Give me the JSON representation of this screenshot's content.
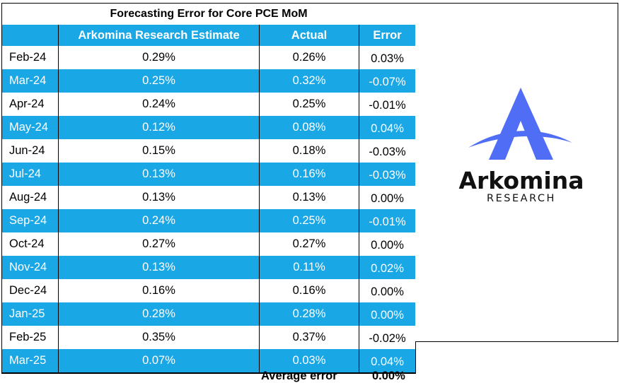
{
  "chart_data": {
    "type": "table",
    "title": "Forecasting Error for Core PCE MoM",
    "columns": [
      "",
      "Arkomina Research Estimate",
      "Actual",
      "Error"
    ],
    "rows": [
      {
        "month": "Feb-24",
        "estimate": "0.29%",
        "actual": "0.26%",
        "error": "0.03%"
      },
      {
        "month": "Mar-24",
        "estimate": "0.25%",
        "actual": "0.32%",
        "error": "-0.07%"
      },
      {
        "month": "Apr-24",
        "estimate": "0.24%",
        "actual": "0.25%",
        "error": "-0.01%"
      },
      {
        "month": "May-24",
        "estimate": "0.12%",
        "actual": "0.08%",
        "error": "0.04%"
      },
      {
        "month": "Jun-24",
        "estimate": "0.15%",
        "actual": "0.18%",
        "error": "-0.03%"
      },
      {
        "month": "Jul-24",
        "estimate": "0.13%",
        "actual": "0.16%",
        "error": "-0.03%"
      },
      {
        "month": "Aug-24",
        "estimate": "0.13%",
        "actual": "0.13%",
        "error": "0.00%"
      },
      {
        "month": "Sep-24",
        "estimate": "0.24%",
        "actual": "0.25%",
        "error": "-0.01%"
      },
      {
        "month": "Oct-24",
        "estimate": "0.27%",
        "actual": "0.27%",
        "error": "0.00%"
      },
      {
        "month": "Nov-24",
        "estimate": "0.13%",
        "actual": "0.11%",
        "error": "0.02%"
      },
      {
        "month": "Dec-24",
        "estimate": "0.16%",
        "actual": "0.16%",
        "error": "0.00%"
      },
      {
        "month": "Jan-25",
        "estimate": "0.28%",
        "actual": "0.28%",
        "error": "0.00%"
      },
      {
        "month": "Feb-25",
        "estimate": "0.35%",
        "actual": "0.37%",
        "error": "-0.02%"
      },
      {
        "month": "Mar-25",
        "estimate": "0.07%",
        "actual": "0.03%",
        "error": "0.04%"
      }
    ],
    "summary": {
      "label": "Average error",
      "value": "0.00%"
    }
  },
  "logo": {
    "name": "Arkomina",
    "subtitle": "RESEARCH",
    "primary_color": "#4f6df5",
    "text_color": "#111111"
  },
  "colors": {
    "header_fill": "#1aa7e6",
    "stripe_fill": "#1aa7e6"
  }
}
